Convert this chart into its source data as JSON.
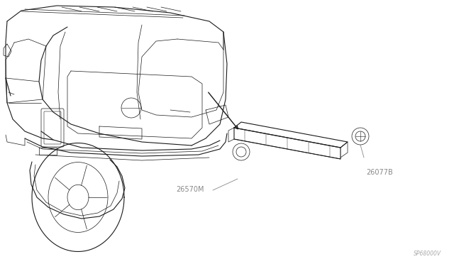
{
  "bg_color": "#ffffff",
  "line_color": "#1a1a1a",
  "label_color": "#888888",
  "watermark_color": "#aaaaaa",
  "part_label_26570M": "26570M",
  "part_label_26077B": "26077B",
  "watermark": "SP68000V",
  "figsize": [
    6.4,
    3.72
  ],
  "dpi": 100
}
